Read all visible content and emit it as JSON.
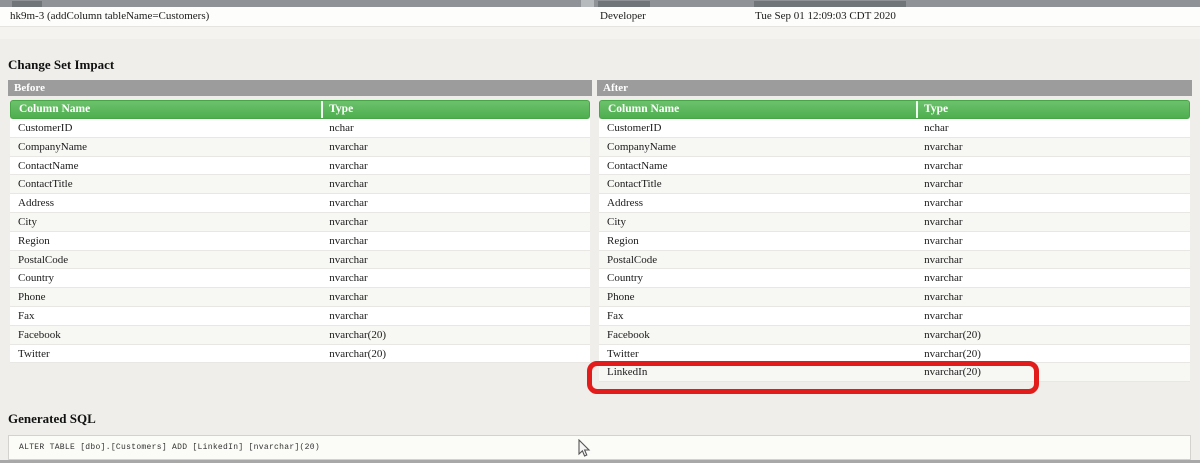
{
  "sections": {
    "impact_title": "Change Set Impact",
    "sql_title": "Generated SQL"
  },
  "changeset": {
    "name": "hk9m-3 (addColumn tableName=Customers)",
    "author": "Developer",
    "date": "Tue Sep 01 12:09:03 CDT 2020"
  },
  "before_table": {
    "title": "Before",
    "columns": [
      "Column Name",
      "Type"
    ],
    "rows": [
      [
        "CustomerID",
        "nchar"
      ],
      [
        "CompanyName",
        "nvarchar"
      ],
      [
        "ContactName",
        "nvarchar"
      ],
      [
        "ContactTitle",
        "nvarchar"
      ],
      [
        "Address",
        "nvarchar"
      ],
      [
        "City",
        "nvarchar"
      ],
      [
        "Region",
        "nvarchar"
      ],
      [
        "PostalCode",
        "nvarchar"
      ],
      [
        "Country",
        "nvarchar"
      ],
      [
        "Phone",
        "nvarchar"
      ],
      [
        "Fax",
        "nvarchar"
      ],
      [
        "Facebook",
        "nvarchar(20)"
      ],
      [
        "Twitter",
        "nvarchar(20)"
      ]
    ]
  },
  "after_table": {
    "title": "After",
    "columns": [
      "Column Name",
      "Type"
    ],
    "rows": [
      [
        "CustomerID",
        "nchar"
      ],
      [
        "CompanyName",
        "nvarchar"
      ],
      [
        "ContactName",
        "nvarchar"
      ],
      [
        "ContactTitle",
        "nvarchar"
      ],
      [
        "Address",
        "nvarchar"
      ],
      [
        "City",
        "nvarchar"
      ],
      [
        "Region",
        "nvarchar"
      ],
      [
        "PostalCode",
        "nvarchar"
      ],
      [
        "Country",
        "nvarchar"
      ],
      [
        "Phone",
        "nvarchar"
      ],
      [
        "Fax",
        "nvarchar"
      ],
      [
        "Facebook",
        "nvarchar(20)"
      ],
      [
        "Twitter",
        "nvarchar(20)"
      ],
      [
        "LinkedIn",
        "nvarchar(20)"
      ]
    ],
    "highlight": {
      "row": "LinkedIn",
      "type": "nvarchar(20)"
    }
  },
  "generated_sql": "ALTER TABLE [dbo].[Customers] ADD [LinkedIn] [nvarchar](20)",
  "colors": {
    "table_header_green": "#56b456",
    "section_bar_gray": "#9c9c9c",
    "highlight_red": "#e21b1b"
  },
  "icons": {
    "cursor": "arrow-pointer-icon"
  }
}
